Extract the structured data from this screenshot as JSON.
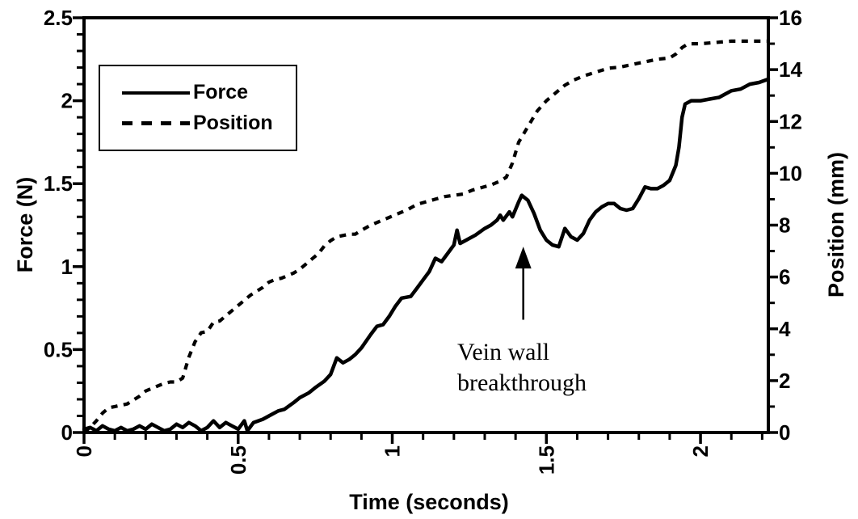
{
  "chart_data": {
    "type": "line",
    "title": "",
    "xlabel": "Time (seconds)",
    "ylabel_left": "Force (N)",
    "ylabel_right": "Position (mm)",
    "xlim": [
      0,
      2.22
    ],
    "ylim_left": [
      0,
      2.5
    ],
    "ylim_right": [
      0,
      16
    ],
    "grid": false,
    "background_color": "#ffffff",
    "line_color": "#000000",
    "x_ticks": {
      "major": [
        {
          "v": 0,
          "label": "0"
        },
        {
          "v": 0.5,
          "label": "0.5"
        },
        {
          "v": 1,
          "label": "1"
        },
        {
          "v": 1.5,
          "label": "1.5"
        },
        {
          "v": 2,
          "label": "2"
        }
      ],
      "minor_step": 0.1,
      "minor_max": 2.2,
      "label_rotation_deg": -90
    },
    "y_left_ticks": {
      "major": [
        {
          "v": 0,
          "label": "0"
        },
        {
          "v": 0.5,
          "label": "0.5"
        },
        {
          "v": 1,
          "label": "1"
        },
        {
          "v": 1.5,
          "label": "1.5"
        },
        {
          "v": 2,
          "label": "2"
        },
        {
          "v": 2.5,
          "label": "2.5"
        }
      ],
      "minor_step": 0.1
    },
    "y_right_ticks": {
      "major": [
        {
          "v": 0,
          "label": "0"
        },
        {
          "v": 2,
          "label": "2"
        },
        {
          "v": 4,
          "label": "4"
        },
        {
          "v": 6,
          "label": "6"
        },
        {
          "v": 8,
          "label": "8"
        },
        {
          "v": 10,
          "label": "10"
        },
        {
          "v": 12,
          "label": "12"
        },
        {
          "v": 14,
          "label": "14"
        },
        {
          "v": 16,
          "label": "16"
        }
      ],
      "minor_step": 1
    },
    "legend": {
      "position": "top-left-inside",
      "items": [
        {
          "label": "Force",
          "style": "solid"
        },
        {
          "label": "Position",
          "style": "dashed"
        }
      ]
    },
    "annotation": {
      "line1": "Vein wall",
      "line2": "breakthrough",
      "arrow_x": 1.425,
      "arrow_tip_force": 1.12,
      "arrow_tail_force": 0.68
    },
    "series": [
      {
        "name": "Force",
        "axis": "left",
        "style": "solid",
        "points": [
          [
            0,
            0.02
          ],
          [
            0.02,
            0.03
          ],
          [
            0.04,
            0.01
          ],
          [
            0.06,
            0.04
          ],
          [
            0.08,
            0.02
          ],
          [
            0.1,
            0.01
          ],
          [
            0.12,
            0.03
          ],
          [
            0.14,
            0.01
          ],
          [
            0.16,
            0.02
          ],
          [
            0.18,
            0.04
          ],
          [
            0.2,
            0.02
          ],
          [
            0.22,
            0.05
          ],
          [
            0.24,
            0.03
          ],
          [
            0.26,
            0.01
          ],
          [
            0.28,
            0.02
          ],
          [
            0.3,
            0.05
          ],
          [
            0.32,
            0.03
          ],
          [
            0.34,
            0.06
          ],
          [
            0.36,
            0.04
          ],
          [
            0.38,
            0.01
          ],
          [
            0.4,
            0.03
          ],
          [
            0.42,
            0.07
          ],
          [
            0.44,
            0.03
          ],
          [
            0.46,
            0.06
          ],
          [
            0.48,
            0.04
          ],
          [
            0.5,
            0.02
          ],
          [
            0.52,
            0.07
          ],
          [
            0.53,
            0.01
          ],
          [
            0.55,
            0.06
          ],
          [
            0.58,
            0.08
          ],
          [
            0.6,
            0.1
          ],
          [
            0.63,
            0.13
          ],
          [
            0.65,
            0.14
          ],
          [
            0.68,
            0.18
          ],
          [
            0.7,
            0.21
          ],
          [
            0.73,
            0.24
          ],
          [
            0.75,
            0.27
          ],
          [
            0.78,
            0.31
          ],
          [
            0.8,
            0.35
          ],
          [
            0.82,
            0.45
          ],
          [
            0.84,
            0.42
          ],
          [
            0.86,
            0.44
          ],
          [
            0.88,
            0.47
          ],
          [
            0.9,
            0.51
          ],
          [
            0.93,
            0.59
          ],
          [
            0.95,
            0.64
          ],
          [
            0.97,
            0.65
          ],
          [
            0.99,
            0.7
          ],
          [
            1.01,
            0.76
          ],
          [
            1.03,
            0.81
          ],
          [
            1.06,
            0.82
          ],
          [
            1.08,
            0.87
          ],
          [
            1.1,
            0.92
          ],
          [
            1.12,
            0.97
          ],
          [
            1.14,
            1.05
          ],
          [
            1.16,
            1.03
          ],
          [
            1.18,
            1.08
          ],
          [
            1.2,
            1.13
          ],
          [
            1.21,
            1.22
          ],
          [
            1.22,
            1.14
          ],
          [
            1.24,
            1.16
          ],
          [
            1.27,
            1.19
          ],
          [
            1.3,
            1.23
          ],
          [
            1.32,
            1.25
          ],
          [
            1.34,
            1.28
          ],
          [
            1.35,
            1.31
          ],
          [
            1.36,
            1.28
          ],
          [
            1.38,
            1.33
          ],
          [
            1.39,
            1.3
          ],
          [
            1.41,
            1.39
          ],
          [
            1.42,
            1.43
          ],
          [
            1.44,
            1.4
          ],
          [
            1.46,
            1.32
          ],
          [
            1.48,
            1.22
          ],
          [
            1.5,
            1.16
          ],
          [
            1.52,
            1.13
          ],
          [
            1.54,
            1.12
          ],
          [
            1.56,
            1.23
          ],
          [
            1.58,
            1.18
          ],
          [
            1.6,
            1.16
          ],
          [
            1.62,
            1.2
          ],
          [
            1.64,
            1.28
          ],
          [
            1.66,
            1.33
          ],
          [
            1.68,
            1.36
          ],
          [
            1.7,
            1.38
          ],
          [
            1.72,
            1.38
          ],
          [
            1.74,
            1.35
          ],
          [
            1.76,
            1.34
          ],
          [
            1.78,
            1.35
          ],
          [
            1.8,
            1.41
          ],
          [
            1.82,
            1.48
          ],
          [
            1.84,
            1.47
          ],
          [
            1.86,
            1.47
          ],
          [
            1.88,
            1.49
          ],
          [
            1.9,
            1.52
          ],
          [
            1.92,
            1.61
          ],
          [
            1.93,
            1.72
          ],
          [
            1.94,
            1.9
          ],
          [
            1.95,
            1.98
          ],
          [
            1.97,
            2.0
          ],
          [
            2.0,
            2.0
          ],
          [
            2.03,
            2.01
          ],
          [
            2.06,
            2.02
          ],
          [
            2.08,
            2.04
          ],
          [
            2.1,
            2.06
          ],
          [
            2.13,
            2.07
          ],
          [
            2.16,
            2.1
          ],
          [
            2.19,
            2.11
          ],
          [
            2.22,
            2.13
          ]
        ]
      },
      {
        "name": "Position",
        "axis": "right",
        "style": "dashed",
        "points": [
          [
            0,
            0
          ],
          [
            0.02,
            0.2
          ],
          [
            0.04,
            0.45
          ],
          [
            0.06,
            0.75
          ],
          [
            0.08,
            0.95
          ],
          [
            0.1,
            1.0
          ],
          [
            0.12,
            1.05
          ],
          [
            0.14,
            1.1
          ],
          [
            0.16,
            1.25
          ],
          [
            0.18,
            1.4
          ],
          [
            0.2,
            1.6
          ],
          [
            0.22,
            1.7
          ],
          [
            0.24,
            1.8
          ],
          [
            0.26,
            1.9
          ],
          [
            0.28,
            1.95
          ],
          [
            0.3,
            1.95
          ],
          [
            0.32,
            2.1
          ],
          [
            0.34,
            2.9
          ],
          [
            0.36,
            3.5
          ],
          [
            0.38,
            3.85
          ],
          [
            0.4,
            3.9
          ],
          [
            0.42,
            4.25
          ],
          [
            0.44,
            4.3
          ],
          [
            0.46,
            4.5
          ],
          [
            0.48,
            4.7
          ],
          [
            0.5,
            4.9
          ],
          [
            0.52,
            5.1
          ],
          [
            0.54,
            5.3
          ],
          [
            0.56,
            5.45
          ],
          [
            0.58,
            5.6
          ],
          [
            0.6,
            5.8
          ],
          [
            0.62,
            5.9
          ],
          [
            0.64,
            5.95
          ],
          [
            0.66,
            6.05
          ],
          [
            0.68,
            6.15
          ],
          [
            0.7,
            6.3
          ],
          [
            0.72,
            6.5
          ],
          [
            0.74,
            6.7
          ],
          [
            0.76,
            6.9
          ],
          [
            0.78,
            7.2
          ],
          [
            0.8,
            7.4
          ],
          [
            0.82,
            7.55
          ],
          [
            0.84,
            7.6
          ],
          [
            0.86,
            7.65
          ],
          [
            0.88,
            7.65
          ],
          [
            0.9,
            7.8
          ],
          [
            0.93,
            8.0
          ],
          [
            0.96,
            8.15
          ],
          [
            0.99,
            8.3
          ],
          [
            1.02,
            8.45
          ],
          [
            1.05,
            8.6
          ],
          [
            1.08,
            8.8
          ],
          [
            1.11,
            8.9
          ],
          [
            1.14,
            9.0
          ],
          [
            1.17,
            9.1
          ],
          [
            1.2,
            9.15
          ],
          [
            1.23,
            9.2
          ],
          [
            1.26,
            9.35
          ],
          [
            1.29,
            9.45
          ],
          [
            1.32,
            9.55
          ],
          [
            1.35,
            9.7
          ],
          [
            1.37,
            9.85
          ],
          [
            1.39,
            10.4
          ],
          [
            1.41,
            11.2
          ],
          [
            1.43,
            11.6
          ],
          [
            1.45,
            12.0
          ],
          [
            1.47,
            12.4
          ],
          [
            1.5,
            12.8
          ],
          [
            1.53,
            13.1
          ],
          [
            1.56,
            13.4
          ],
          [
            1.59,
            13.6
          ],
          [
            1.62,
            13.75
          ],
          [
            1.66,
            13.9
          ],
          [
            1.7,
            14.05
          ],
          [
            1.74,
            14.1
          ],
          [
            1.78,
            14.2
          ],
          [
            1.82,
            14.3
          ],
          [
            1.86,
            14.4
          ],
          [
            1.9,
            14.45
          ],
          [
            1.92,
            14.6
          ],
          [
            1.94,
            14.85
          ],
          [
            1.96,
            15.0
          ],
          [
            2.0,
            15.0
          ],
          [
            2.05,
            15.05
          ],
          [
            2.1,
            15.1
          ],
          [
            2.15,
            15.1
          ],
          [
            2.2,
            15.1
          ],
          [
            2.22,
            15.1
          ]
        ]
      }
    ]
  }
}
